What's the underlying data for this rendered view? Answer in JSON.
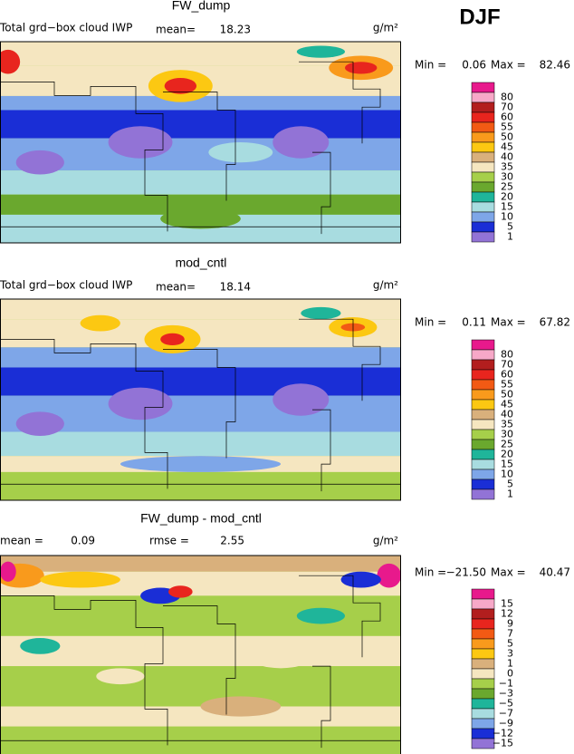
{
  "season": "DJF",
  "panels": [
    {
      "title": "FW_dump",
      "field": "Total grd−box cloud IWP",
      "stats": [
        {
          "label": "mean=",
          "value": "18.23"
        }
      ],
      "units": "g/m²",
      "min_label": "Min =",
      "min": "0.06",
      "max_label": "Max =",
      "max": "82.46",
      "colorbar": {
        "levels": [
          80,
          70,
          60,
          55,
          50,
          45,
          40,
          35,
          30,
          25,
          20,
          15,
          10,
          5,
          1
        ],
        "colors": [
          "#e8198c",
          "#f7a8c8",
          "#b21e1e",
          "#e8251e",
          "#f25a14",
          "#f99a1c",
          "#fcc812",
          "#d9b07c",
          "#f5e6c0",
          "#a6cf4a",
          "#6aa82e",
          "#1fb59a",
          "#a8dce0",
          "#7ea6e8",
          "#1a2ed6",
          "#9273d6"
        ]
      }
    },
    {
      "title": "mod_cntl",
      "field": "Total grd−box cloud IWP",
      "stats": [
        {
          "label": "mean=",
          "value": "18.14"
        }
      ],
      "units": "g/m²",
      "min_label": "Min =",
      "min": "0.11",
      "max_label": "Max =",
      "max": "67.82",
      "colorbar": {
        "levels": [
          80,
          70,
          60,
          55,
          50,
          45,
          40,
          35,
          30,
          25,
          20,
          15,
          10,
          5,
          1
        ],
        "colors": [
          "#e8198c",
          "#f7a8c8",
          "#b21e1e",
          "#e8251e",
          "#f25a14",
          "#f99a1c",
          "#fcc812",
          "#d9b07c",
          "#f5e6c0",
          "#a6cf4a",
          "#6aa82e",
          "#1fb59a",
          "#a8dce0",
          "#7ea6e8",
          "#1a2ed6",
          "#9273d6"
        ]
      }
    },
    {
      "title": "FW_dump - mod_cntl",
      "stats": [
        {
          "label": "mean =",
          "value": "0.09"
        },
        {
          "label": "rmse =",
          "value": "2.55"
        }
      ],
      "units": "g/m²",
      "min_label": "Min =",
      "min": "−21.50",
      "max_label": "Max =",
      "max": "40.47",
      "colorbar": {
        "levels": [
          "15",
          "12",
          "9",
          "7",
          "5",
          "3",
          "1",
          "0",
          "−1",
          "−3",
          "−5",
          "−7",
          "−9",
          "−12",
          "−15"
        ],
        "colors": [
          "#e8198c",
          "#f7a8c8",
          "#b21e1e",
          "#e8251e",
          "#f25a14",
          "#f99a1c",
          "#fcc812",
          "#d9b07c",
          "#f5e6c0",
          "#a6cf4a",
          "#6aa82e",
          "#1fb59a",
          "#a8dce0",
          "#7ea6e8",
          "#1a2ed6",
          "#9273d6"
        ]
      }
    }
  ]
}
